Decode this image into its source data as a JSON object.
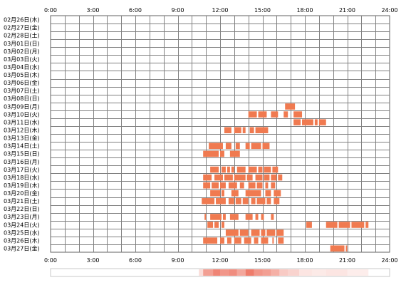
{
  "chart_data": {
    "type": "heatmap",
    "x_unit": "hour of day",
    "xlim": [
      0,
      24
    ],
    "x_ticks": [
      "0:00",
      "3:00",
      "6:00",
      "9:00",
      "12:00",
      "15:00",
      "18:00",
      "21:00",
      "24:00"
    ],
    "rows": [
      {
        "label": "02月26日(木)",
        "bars": []
      },
      {
        "label": "02月27日(金)",
        "bars": []
      },
      {
        "label": "02月28日(土)",
        "bars": []
      },
      {
        "label": "03月01日(日)",
        "bars": []
      },
      {
        "label": "03月02日(月)",
        "bars": []
      },
      {
        "label": "03月03日(火)",
        "bars": []
      },
      {
        "label": "03月04日(水)",
        "bars": []
      },
      {
        "label": "03月05日(木)",
        "bars": []
      },
      {
        "label": "03月06日(金)",
        "bars": []
      },
      {
        "label": "03月07日(土)",
        "bars": []
      },
      {
        "label": "03月08日(日)",
        "bars": []
      },
      {
        "label": "03月09日(月)",
        "bars": [
          [
            16.6,
            17.3
          ]
        ]
      },
      {
        "label": "03月10日(火)",
        "bars": [
          [
            14.0,
            14.6
          ],
          [
            14.7,
            15.3
          ],
          [
            15.6,
            16.1
          ],
          [
            16.5,
            16.8
          ],
          [
            17.2,
            17.8
          ]
        ]
      },
      {
        "label": "03月11日(水)",
        "bars": [
          [
            17.2,
            17.7
          ],
          [
            17.8,
            18.6
          ],
          [
            18.7,
            18.9
          ],
          [
            19.0,
            19.5
          ]
        ]
      },
      {
        "label": "03月12日(木)",
        "bars": [
          [
            12.3,
            12.8
          ],
          [
            13.0,
            13.5
          ],
          [
            13.6,
            13.8
          ],
          [
            14.1,
            14.4
          ],
          [
            14.5,
            15.4
          ]
        ]
      },
      {
        "label": "03月13日(金)",
        "bars": []
      },
      {
        "label": "03月14日(土)",
        "bars": [
          [
            11.2,
            12.2
          ],
          [
            12.4,
            12.8
          ],
          [
            13.1,
            13.4
          ],
          [
            13.8,
            14.1
          ],
          [
            14.2,
            14.9
          ],
          [
            15.0,
            15.5
          ]
        ]
      },
      {
        "label": "03月15日(日)",
        "bars": [
          [
            10.8,
            11.9
          ],
          [
            12.0,
            12.3
          ],
          [
            12.7,
            13.4
          ]
        ]
      },
      {
        "label": "03月16日(月)",
        "bars": []
      },
      {
        "label": "03月17日(火)",
        "bars": [
          [
            11.3,
            11.9
          ],
          [
            12.1,
            12.4
          ],
          [
            12.5,
            12.7
          ],
          [
            12.8,
            13.0
          ],
          [
            13.2,
            13.8
          ],
          [
            14.0,
            14.6
          ],
          [
            14.7,
            15.0
          ],
          [
            15.1,
            15.6
          ],
          [
            15.7,
            16.1
          ]
        ]
      },
      {
        "label": "03月18日(水)",
        "bars": [
          [
            10.8,
            11.4
          ],
          [
            11.6,
            12.2
          ],
          [
            12.3,
            12.9
          ],
          [
            13.0,
            13.8
          ],
          [
            13.9,
            14.3
          ],
          [
            14.5,
            15.0
          ],
          [
            15.1,
            15.5
          ],
          [
            15.6,
            16.0
          ],
          [
            16.1,
            16.4
          ]
        ]
      },
      {
        "label": "03月19日(木)",
        "bars": [
          [
            10.8,
            11.3
          ],
          [
            11.4,
            11.9
          ],
          [
            12.0,
            12.4
          ],
          [
            12.6,
            13.2
          ],
          [
            13.4,
            13.7
          ],
          [
            14.0,
            14.5
          ],
          [
            14.6,
            15.0
          ],
          [
            15.2,
            15.4
          ],
          [
            15.6,
            15.9
          ]
        ]
      },
      {
        "label": "03月20日(金)",
        "bars": [
          [
            11.3,
            12.0
          ],
          [
            12.1,
            12.3
          ],
          [
            12.8,
            13.3
          ],
          [
            13.8,
            14.9
          ],
          [
            15.2,
            15.6
          ],
          [
            15.8,
            16.3
          ]
        ]
      },
      {
        "label": "03月21日(土)",
        "bars": [
          [
            10.7,
            11.6
          ],
          [
            11.7,
            12.4
          ],
          [
            12.6,
            13.0
          ],
          [
            13.1,
            13.5
          ],
          [
            13.6,
            14.0
          ],
          [
            14.2,
            14.5
          ],
          [
            14.6,
            15.2
          ],
          [
            15.3,
            15.6
          ],
          [
            15.8,
            16.2
          ]
        ]
      },
      {
        "label": "03月22日(日)",
        "bars": []
      },
      {
        "label": "03月23日(月)",
        "bars": [
          [
            10.9,
            11.0
          ],
          [
            11.3,
            12.1
          ],
          [
            12.2,
            12.4
          ],
          [
            12.7,
            13.3
          ],
          [
            13.8,
            14.3
          ],
          [
            14.5,
            14.7
          ],
          [
            14.9,
            15.1
          ],
          [
            15.6,
            15.8
          ]
        ]
      },
      {
        "label": "03月24日(火)",
        "bars": [
          [
            11.1,
            11.5
          ],
          [
            11.6,
            11.9
          ],
          [
            12.1,
            12.3
          ],
          [
            18.1,
            18.5
          ],
          [
            19.5,
            20.3
          ],
          [
            20.4,
            21.2
          ],
          [
            21.3,
            22.2
          ],
          [
            22.3,
            22.5
          ]
        ]
      },
      {
        "label": "03月25日(水)",
        "bars": [
          [
            12.4,
            13.3
          ],
          [
            13.4,
            14.0
          ],
          [
            14.2,
            14.8
          ],
          [
            14.9,
            15.2
          ],
          [
            15.3,
            15.9
          ],
          [
            16.0,
            16.5
          ]
        ]
      },
      {
        "label": "03月26日(木)",
        "bars": [
          [
            10.8,
            11.8
          ],
          [
            12.0,
            12.3
          ],
          [
            12.5,
            12.8
          ],
          [
            13.0,
            13.5
          ],
          [
            13.7,
            14.2
          ],
          [
            14.4,
            14.7
          ],
          [
            14.9,
            15.4
          ],
          [
            15.7,
            15.8
          ],
          [
            16.1,
            16.5
          ]
        ]
      },
      {
        "label": "03月27日(金)",
        "bars": [
          [
            19.8,
            20.8
          ],
          [
            20.9,
            21.0
          ]
        ]
      }
    ],
    "density": [
      {
        "start": 10.5,
        "end": 10.8,
        "level": 0.2
      },
      {
        "start": 10.8,
        "end": 11.5,
        "level": 0.55
      },
      {
        "start": 11.5,
        "end": 12.0,
        "level": 0.7
      },
      {
        "start": 12.0,
        "end": 12.6,
        "level": 0.6
      },
      {
        "start": 12.6,
        "end": 13.2,
        "level": 0.65
      },
      {
        "start": 13.2,
        "end": 13.8,
        "level": 0.5
      },
      {
        "start": 13.8,
        "end": 14.4,
        "level": 0.75
      },
      {
        "start": 14.4,
        "end": 15.0,
        "level": 0.6
      },
      {
        "start": 15.0,
        "end": 15.6,
        "level": 0.55
      },
      {
        "start": 15.6,
        "end": 16.2,
        "level": 0.45
      },
      {
        "start": 16.2,
        "end": 16.8,
        "level": 0.3
      },
      {
        "start": 16.8,
        "end": 17.6,
        "level": 0.25
      },
      {
        "start": 17.6,
        "end": 18.5,
        "level": 0.15
      },
      {
        "start": 18.5,
        "end": 19.5,
        "level": 0.12
      },
      {
        "start": 19.5,
        "end": 21.0,
        "level": 0.15
      },
      {
        "start": 21.0,
        "end": 22.5,
        "level": 0.1
      }
    ],
    "colors": {
      "bar": "#f07a50",
      "grid_line": "#808080",
      "grid_border": "#606060",
      "density_base": "#e8503a",
      "density_frame": "#c8c8c8"
    }
  }
}
